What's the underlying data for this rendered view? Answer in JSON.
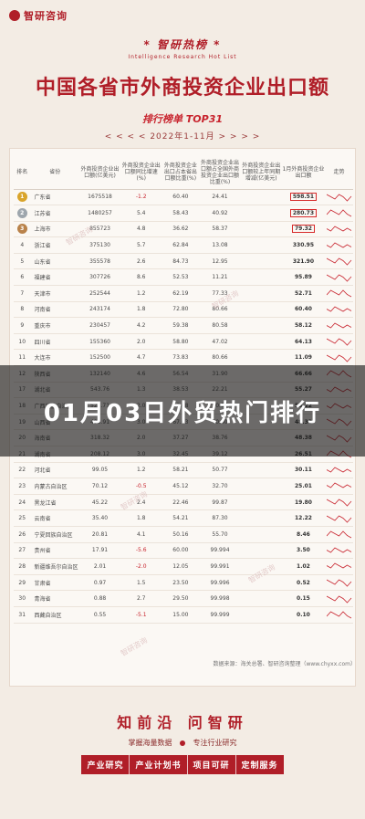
{
  "header": {
    "logo_text": "智研咨询",
    "brand_title": "* 智研热榜 *",
    "brand_sub": "Intelligence Research Hot List",
    "main_title": "中国各省市外商投资企业出口额",
    "list_title": "排行榜单  TOP31",
    "date_range": "< < < <   2022年1-11月   > > > >"
  },
  "table": {
    "headers": [
      "排名",
      "省份",
      "外商投资企业出口额(亿美元)",
      "外商投资企业出口额同比增速(%)",
      "外商投资企业出口占本省出口额比重(%)",
      "外商投资企业出口额占全国外商投资企业出口额比重(%)",
      "外商投资企业出口额较上年同期增减(亿美元)",
      "1月外商投资企业出口额",
      "走势"
    ],
    "rows": [
      {
        "rank": "1",
        "prov": "广东省",
        "v": "1675518",
        "s": "-1.2",
        "sh": "60.40",
        "fy": "24.41",
        "rs": "",
        "val": "598.51",
        "medal": "gold",
        "hl": true
      },
      {
        "rank": "2",
        "prov": "江苏省",
        "v": "1480257",
        "s": "5.4",
        "sh": "58.43",
        "fy": "40.92",
        "rs": "",
        "val": "280.73",
        "medal": "silver",
        "hl": true
      },
      {
        "rank": "3",
        "prov": "上海市",
        "v": "855723",
        "s": "4.8",
        "sh": "36.62",
        "fy": "58.37",
        "rs": "",
        "val": "79.32",
        "medal": "bronze",
        "hl": true
      },
      {
        "rank": "4",
        "prov": "浙江省",
        "v": "375130",
        "s": "5.7",
        "sh": "62.84",
        "fy": "13.08",
        "rs": "",
        "val": "330.95",
        "medal": "",
        "hl": false
      },
      {
        "rank": "5",
        "prov": "山东省",
        "v": "355578",
        "s": "2.6",
        "sh": "84.73",
        "fy": "12.95",
        "rs": "",
        "val": "321.90",
        "medal": "",
        "hl": false
      },
      {
        "rank": "6",
        "prov": "福建省",
        "v": "307726",
        "s": "8.6",
        "sh": "52.53",
        "fy": "11.21",
        "rs": "",
        "val": "95.89",
        "medal": "",
        "hl": false
      },
      {
        "rank": "7",
        "prov": "天津市",
        "v": "252544",
        "s": "1.2",
        "sh": "62.19",
        "fy": "77.33",
        "rs": "",
        "val": "52.71",
        "medal": "",
        "hl": false
      },
      {
        "rank": "8",
        "prov": "河南省",
        "v": "243174",
        "s": "1.8",
        "sh": "72.80",
        "fy": "80.66",
        "rs": "",
        "val": "60.40",
        "medal": "",
        "hl": false
      },
      {
        "rank": "9",
        "prov": "重庆市",
        "v": "230457",
        "s": "4.2",
        "sh": "59.38",
        "fy": "80.58",
        "rs": "",
        "val": "58.12",
        "medal": "",
        "hl": false
      },
      {
        "rank": "10",
        "prov": "四川省",
        "v": "155360",
        "s": "2.0",
        "sh": "58.80",
        "fy": "47.02",
        "rs": "",
        "val": "64.13",
        "medal": "",
        "hl": false
      },
      {
        "rank": "11",
        "prov": "大连市",
        "v": "152500",
        "s": "4.7",
        "sh": "73.83",
        "fy": "80.66",
        "rs": "",
        "val": "11.09",
        "medal": "",
        "hl": false
      },
      {
        "rank": "12",
        "prov": "陕西省",
        "v": "132140",
        "s": "4.6",
        "sh": "56.54",
        "fy": "31.90",
        "rs": "",
        "val": "66.66",
        "medal": "",
        "hl": false
      },
      {
        "rank": "17",
        "prov": "湖北省",
        "v": "543.76",
        "s": "1.3",
        "sh": "38.53",
        "fy": "22.21",
        "rs": "",
        "val": "55.27",
        "medal": "",
        "hl": false
      },
      {
        "rank": "18",
        "prov": "广西壮族自治区",
        "v": "521.71",
        "s": "2.0",
        "sh": "37.68",
        "fy": "50.37",
        "rs": "",
        "val": "55.22",
        "medal": "",
        "hl": false
      },
      {
        "rank": "19",
        "prov": "山西省",
        "v": "495.91",
        "s": "3.0",
        "sh": "67.63",
        "fy": "40.50",
        "rs": "",
        "val": "48.33",
        "medal": "",
        "hl": false
      },
      {
        "rank": "20",
        "prov": "海南省",
        "v": "318.32",
        "s": "2.0",
        "sh": "37.27",
        "fy": "38.76",
        "rs": "",
        "val": "48.38",
        "medal": "",
        "hl": false
      },
      {
        "rank": "21",
        "prov": "湖南省",
        "v": "208.12",
        "s": "3.0",
        "sh": "32.45",
        "fy": "39.12",
        "rs": "",
        "val": "26.51",
        "medal": "",
        "hl": false
      },
      {
        "rank": "22",
        "prov": "河北省",
        "v": "99.05",
        "s": "1.2",
        "sh": "58.21",
        "fy": "50.77",
        "rs": "",
        "val": "30.11",
        "medal": "",
        "hl": false
      },
      {
        "rank": "23",
        "prov": "内蒙古自治区",
        "v": "70.12",
        "s": "-0.5",
        "sh": "45.12",
        "fy": "32.70",
        "rs": "",
        "val": "25.01",
        "medal": "",
        "hl": false
      },
      {
        "rank": "24",
        "prov": "黑龙江省",
        "v": "45.22",
        "s": "2.4",
        "sh": "22.46",
        "fy": "99.87",
        "rs": "",
        "val": "19.80",
        "medal": "",
        "hl": false
      },
      {
        "rank": "25",
        "prov": "云南省",
        "v": "35.40",
        "s": "1.8",
        "sh": "54.21",
        "fy": "87.30",
        "rs": "",
        "val": "12.22",
        "medal": "",
        "hl": false
      },
      {
        "rank": "26",
        "prov": "宁夏回族自治区",
        "v": "20.81",
        "s": "4.1",
        "sh": "50.16",
        "fy": "55.70",
        "rs": "",
        "val": "8.46",
        "medal": "",
        "hl": false
      },
      {
        "rank": "27",
        "prov": "贵州省",
        "v": "17.91",
        "s": "-5.6",
        "sh": "60.00",
        "fy": "99.994",
        "rs": "",
        "val": "3.50",
        "medal": "",
        "hl": false
      },
      {
        "rank": "28",
        "prov": "新疆维吾尔自治区",
        "v": "2.01",
        "s": "-2.0",
        "sh": "12.05",
        "fy": "99.991",
        "rs": "",
        "val": "1.02",
        "medal": "",
        "hl": false
      },
      {
        "rank": "29",
        "prov": "甘肃省",
        "v": "0.97",
        "s": "1.5",
        "sh": "23.50",
        "fy": "99.996",
        "rs": "",
        "val": "0.52",
        "medal": "",
        "hl": false
      },
      {
        "rank": "30",
        "prov": "青海省",
        "v": "0.88",
        "s": "2.7",
        "sh": "29.50",
        "fy": "99.998",
        "rs": "",
        "val": "0.15",
        "medal": "",
        "hl": false
      },
      {
        "rank": "31",
        "prov": "西藏自治区",
        "v": "0.55",
        "s": "-5.1",
        "sh": "15.00",
        "fy": "99.999",
        "rs": "",
        "val": "0.10",
        "medal": "",
        "hl": false
      }
    ]
  },
  "overlay_title": "01月03日外贸热门排行",
  "source": "数据来源：海关总署、智研咨询整理（www.chyxx.com）",
  "watermark": "智研咨询",
  "footer": {
    "title": "知前沿 问智研",
    "sub_left": "掌握海量数据",
    "sub_right": "专注行业研究",
    "buttons": [
      "产业研究",
      "产业计划书",
      "项目可研",
      "定制服务"
    ]
  },
  "colors": {
    "brand": "#b01e28",
    "highlight": "#d72a2a"
  }
}
